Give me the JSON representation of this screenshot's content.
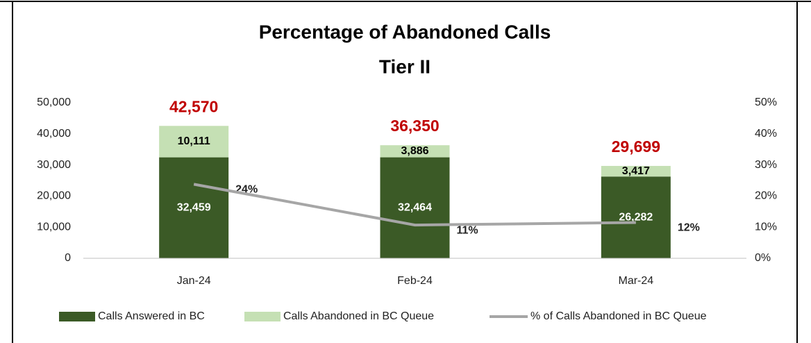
{
  "chart_data": {
    "type": "stacked_bar_line",
    "title": "Percentage of Abandoned Calls",
    "subtitle": "Tier II",
    "categories": [
      "Jan-24",
      "Feb-24",
      "Mar-24"
    ],
    "series": [
      {
        "name": "Calls Answered in BC",
        "color": "#3b5a26",
        "values": [
          32459,
          32464,
          26282
        ],
        "value_labels": [
          "32,459",
          "32,464",
          "26,282"
        ]
      },
      {
        "name": "Calls Abandoned in BC Queue",
        "color": "#c5e0b4",
        "values": [
          10111,
          3886,
          3417
        ],
        "value_labels": [
          "10,111",
          "3,886",
          "3,417"
        ]
      },
      {
        "name": "% of Calls Abandoned in BC Queue",
        "color": "#a6a6a6",
        "type": "line",
        "axis": "y2",
        "values": [
          23.8,
          10.7,
          11.5
        ],
        "value_labels": [
          "24%",
          "11%",
          "12%"
        ]
      }
    ],
    "totals": [
      42570,
      36350,
      29699
    ],
    "total_labels": [
      "42,570",
      "36,350",
      "29,699"
    ],
    "total_color": "#c00000",
    "ylim": [
      0,
      50000
    ],
    "yticks": [
      0,
      {
        "value": 10000,
        "label": "10,000"
      },
      {
        "value": 20000,
        "label": "20,000"
      },
      {
        "value": 30000,
        "label": "30,000"
      },
      {
        "value": 40000,
        "label": "40,000"
      },
      {
        "value": 50000,
        "label": "50,000"
      }
    ],
    "y2lim": [
      0,
      50
    ],
    "y2ticks": [
      {
        "value": 0,
        "label": "0%"
      },
      {
        "value": 10,
        "label": "10%"
      },
      {
        "value": 20,
        "label": "20%"
      },
      {
        "value": 30,
        "label": "30%"
      },
      {
        "value": 40,
        "label": "40%"
      },
      {
        "value": 50,
        "label": "50%"
      }
    ],
    "grid": false,
    "legend": "bottom"
  }
}
